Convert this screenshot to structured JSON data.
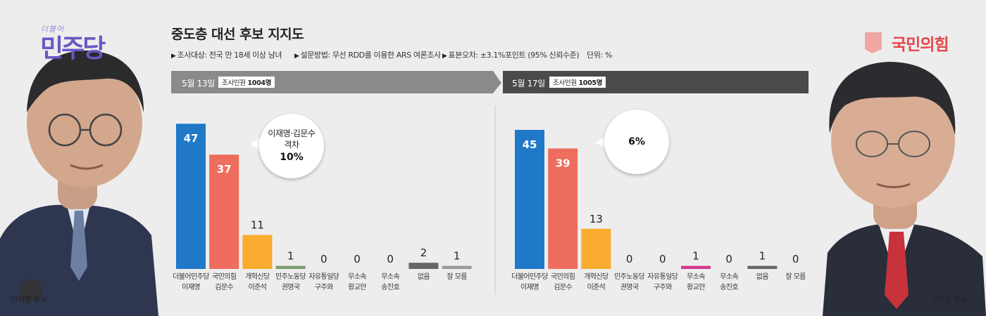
{
  "title": "중도층 대선 후보 지지도",
  "survey_info": {
    "target": "조사대상: 전국 만 18세 이상 남녀",
    "method": "설문방법: 무선 RDD를 이용한 ARS 여론조사",
    "error": "표본오차: ±3.1%포인트 (95% 신뢰수준)",
    "unit": "단위: %"
  },
  "logos": {
    "democratic_small": "더불어",
    "democratic": "민주당",
    "ppp": "국민의힘"
  },
  "captions": {
    "left": "이재명 후보",
    "right": "김문수 후보"
  },
  "colors": {
    "democratic": "#1f78c8",
    "ppp": "#ef6d5e",
    "reform": "#f9ac2f",
    "labor": "#7a9c6e",
    "unification": "#d3398a",
    "none": "#666666",
    "dont_know": "#9a9a9a",
    "band_left": "#8a8a8a",
    "band_right": "#4a4a4a"
  },
  "chart_data": [
    {
      "type": "bar",
      "date": "5월 13일",
      "sample_label": "조사인원",
      "sample_size": "1004명",
      "categories": [
        [
          "더불어민주당",
          "이재명"
        ],
        [
          "국민의힘",
          "김문수"
        ],
        [
          "개혁신당",
          "이준석"
        ],
        [
          "민주노동당",
          "권영국"
        ],
        [
          "자유통일당",
          "구주와"
        ],
        [
          "무소속",
          "황교안"
        ],
        [
          "무소속",
          "송진호"
        ],
        [
          "없음"
        ],
        [
          "잘 모름"
        ]
      ],
      "values": [
        47,
        37,
        11,
        1,
        0,
        0,
        0,
        2,
        1
      ],
      "colors": [
        "#1f78c8",
        "#ef6d5e",
        "#f9ac2f",
        "#7a9c6e",
        "#7a9c6e",
        "#7a9c6e",
        "#7a9c6e",
        "#666666",
        "#9a9a9a"
      ],
      "bubble": {
        "text": [
          "이재명·김문수",
          "격차"
        ],
        "value": "10%"
      },
      "ylim": [
        0,
        50
      ]
    },
    {
      "type": "bar",
      "date": "5월 17일",
      "sample_label": "조사인원",
      "sample_size": "1005명",
      "categories": [
        [
          "더불어민주당",
          "이재명"
        ],
        [
          "국민의힘",
          "김문수"
        ],
        [
          "개혁신당",
          "이준석"
        ],
        [
          "민주노동당",
          "권영국"
        ],
        [
          "자유통일당",
          "구주와"
        ],
        [
          "무소속",
          "황교안"
        ],
        [
          "무소속",
          "송진호"
        ],
        [
          "없음"
        ],
        [
          "잘 모름"
        ]
      ],
      "values": [
        45,
        39,
        13,
        0,
        0,
        1,
        0,
        1,
        0
      ],
      "colors": [
        "#1f78c8",
        "#ef6d5e",
        "#f9ac2f",
        "#7a9c6e",
        "#7a9c6e",
        "#d3398a",
        "#7a9c6e",
        "#666666",
        "#9a9a9a"
      ],
      "bubble": {
        "text": [],
        "value": "6%"
      },
      "ylim": [
        0,
        50
      ]
    }
  ]
}
